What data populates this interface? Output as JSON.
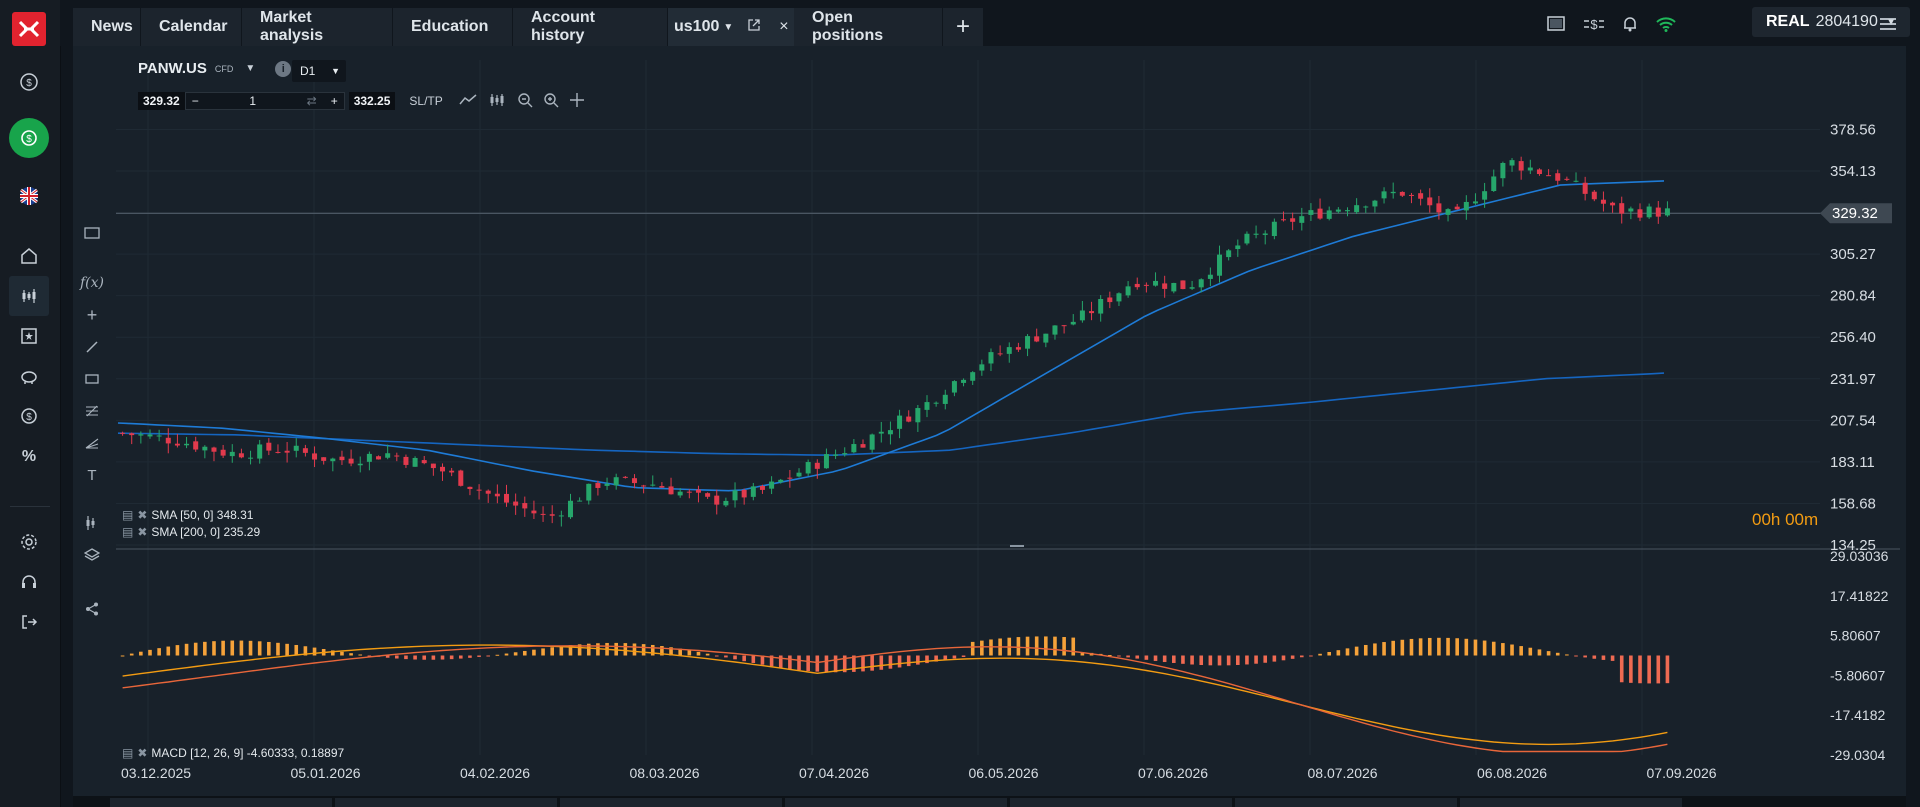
{
  "nav": {
    "tabs": [
      {
        "label": "News"
      },
      {
        "label": "Calendar"
      },
      {
        "label": "Market analysis"
      },
      {
        "label": "Education"
      },
      {
        "label": "Account history"
      },
      {
        "label": "us100"
      },
      {
        "label": "Open positions"
      }
    ],
    "account_type": "REAL",
    "account_number": "2804190"
  },
  "chart": {
    "symbol": "PANW.US",
    "instrument_type": "CFD",
    "timeframe": "D1",
    "sell_price": "329.32",
    "buy_price": "332.25",
    "quantity": "1",
    "sltp_label": "SL/TP",
    "current_price": "329.32",
    "timer": "00h 00m",
    "price_axis": [
      "378.56",
      "354.13",
      "329.32",
      "305.27",
      "280.84",
      "256.40",
      "231.97",
      "207.54",
      "183.11",
      "158.68",
      "134.25"
    ],
    "macd_axis": [
      "29.03036",
      "17.41822",
      "5.80607",
      "-5.80607",
      "-17.4182",
      "-29.0304"
    ],
    "date_axis": [
      "03.12.2025",
      "05.01.2026",
      "04.02.2026",
      "08.03.2026",
      "07.04.2026",
      "06.05.2026",
      "07.06.2026",
      "08.07.2026",
      "06.08.2026",
      "07.09.2026"
    ],
    "sma50_label": "SMA [50, 0] 348.31",
    "sma200_label": "SMA [200, 0] 235.29",
    "macd_label": "MACD [12, 26, 9] -4.60333, 0.18897"
  },
  "chart_data": {
    "type": "candlestick",
    "x": [
      "03.12.2025",
      "05.01.2026",
      "04.02.2026",
      "08.03.2026",
      "07.04.2026",
      "06.05.2026",
      "07.06.2026",
      "08.07.2026",
      "06.08.2026",
      "07.09.2026"
    ],
    "close_path": [
      200,
      196,
      188,
      191,
      184,
      188,
      178,
      162,
      150,
      172,
      170,
      160,
      166,
      182,
      197,
      215,
      240,
      255,
      268,
      290,
      286,
      312,
      326,
      334,
      342,
      326,
      360,
      350,
      331,
      330
    ],
    "sma50": [
      206,
      203,
      197,
      190,
      178,
      168,
      166,
      178,
      200,
      235,
      270,
      296,
      316,
      331,
      346,
      348.31
    ],
    "sma200": [
      200,
      199,
      196,
      193,
      190,
      188,
      187,
      190,
      200,
      212,
      218,
      225,
      232,
      235.29
    ],
    "ylim": [
      134.25,
      390
    ],
    "macd_ylim": [
      -29.03,
      29.03
    ],
    "colors": {
      "up": "#26a66b",
      "down": "#e23a4d",
      "sma50": "#1e7bd6",
      "sma200": "#1565c0",
      "macd_pos": "#f5a23a",
      "macd_neg": "#ef6a52"
    }
  }
}
